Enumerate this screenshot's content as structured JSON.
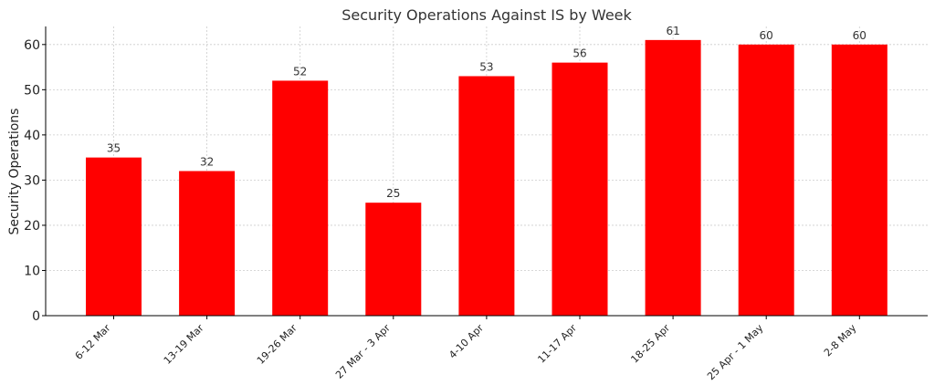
{
  "chart_data": {
    "type": "bar",
    "title": "Security Operations Against IS by Week",
    "xlabel": "",
    "ylabel": "Security Operations",
    "categories": [
      "6-12 Mar",
      "13-19 Mar",
      "19-26 Mar",
      "27 Mar - 3 Apr",
      "4-10 Apr",
      "11-17 Apr",
      "18-25 Apr",
      "25 Apr - 1 May",
      "2-8 May"
    ],
    "values": [
      35,
      32,
      52,
      25,
      53,
      56,
      61,
      60,
      60
    ],
    "ylim": [
      0,
      64
    ],
    "yticks": [
      0,
      10,
      20,
      30,
      40,
      50,
      60
    ],
    "bar_color": "#ff0000",
    "grid": true,
    "data_labels": true
  }
}
